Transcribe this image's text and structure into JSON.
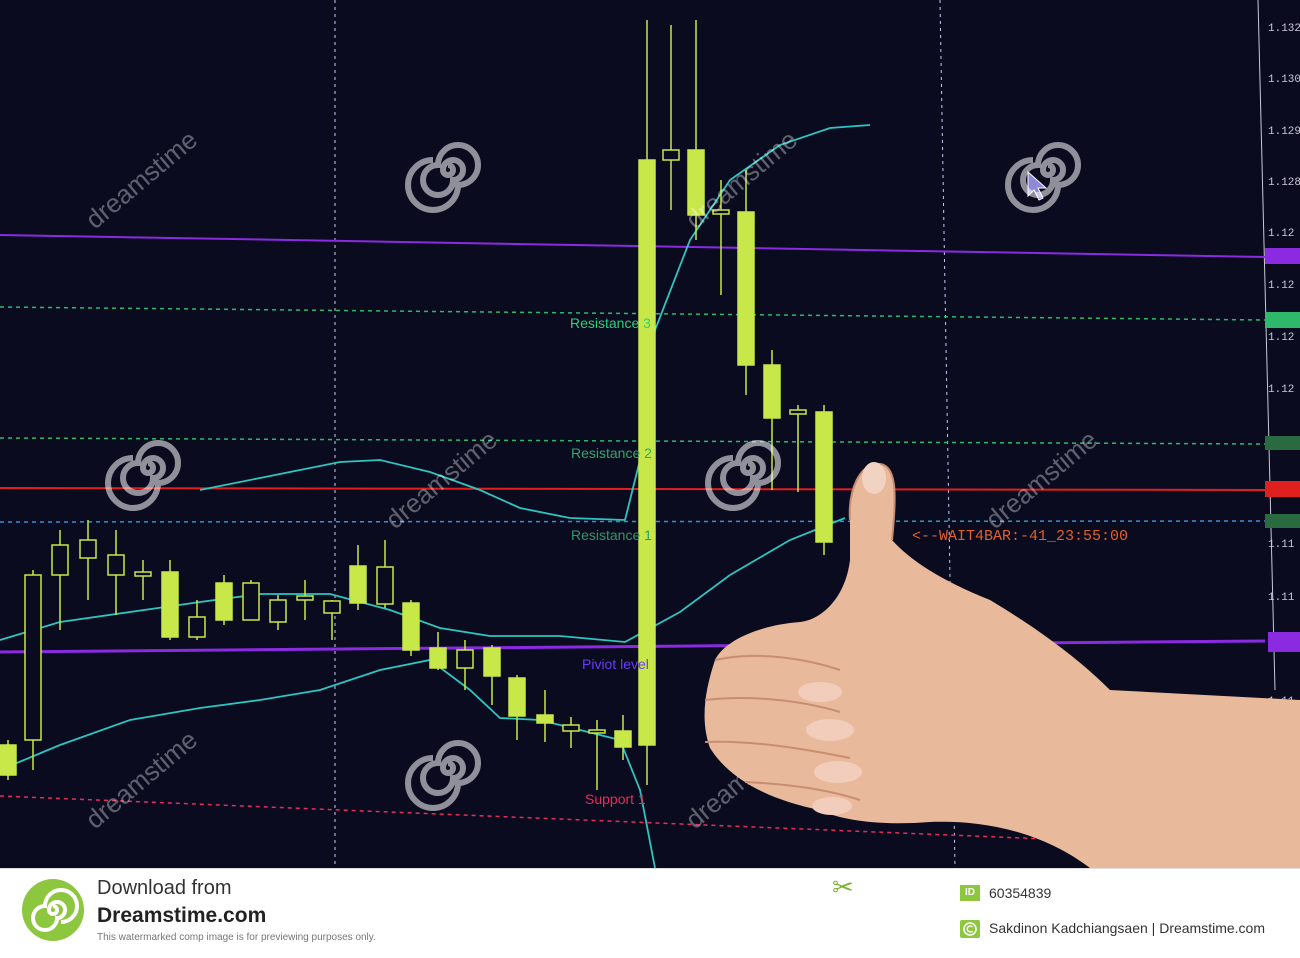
{
  "price_scale": {
    "ticks": [
      "1.132",
      "1.130",
      "1.129",
      "1.128",
      "1.12",
      "1.12",
      "1.12",
      "1.12",
      "1.12",
      "1.11",
      "1.11",
      "1.11",
      "1.11",
      "1.11"
    ]
  },
  "levels": {
    "resistance3": "Resistance 3",
    "resistance2": "Resistance 2",
    "resistance1": "Resistance 1",
    "pivot": "Piviot level",
    "support1": "Support 1"
  },
  "status_text": "<--WAIT4BAR:-41_23:55:00",
  "watermark": "dreamstime",
  "colors": {
    "background": "#0a0b1f",
    "candle": "#c8e84a",
    "bands": "#2ec4c0",
    "purple": "#8a2be2",
    "red": "#e01f1f",
    "green_dash": "#2fb86a",
    "blue_dash": "#3a8fd0",
    "brand": "#8dc63f"
  },
  "footer": {
    "download_from": "Download from",
    "site": "Dreamstime.com",
    "note": "This watermarked comp image is for previewing purposes only.",
    "id_badge": "ID",
    "id_number": "60354839",
    "credit": "Sakdinon Kadchiangsaen | Dreamstime.com"
  }
}
